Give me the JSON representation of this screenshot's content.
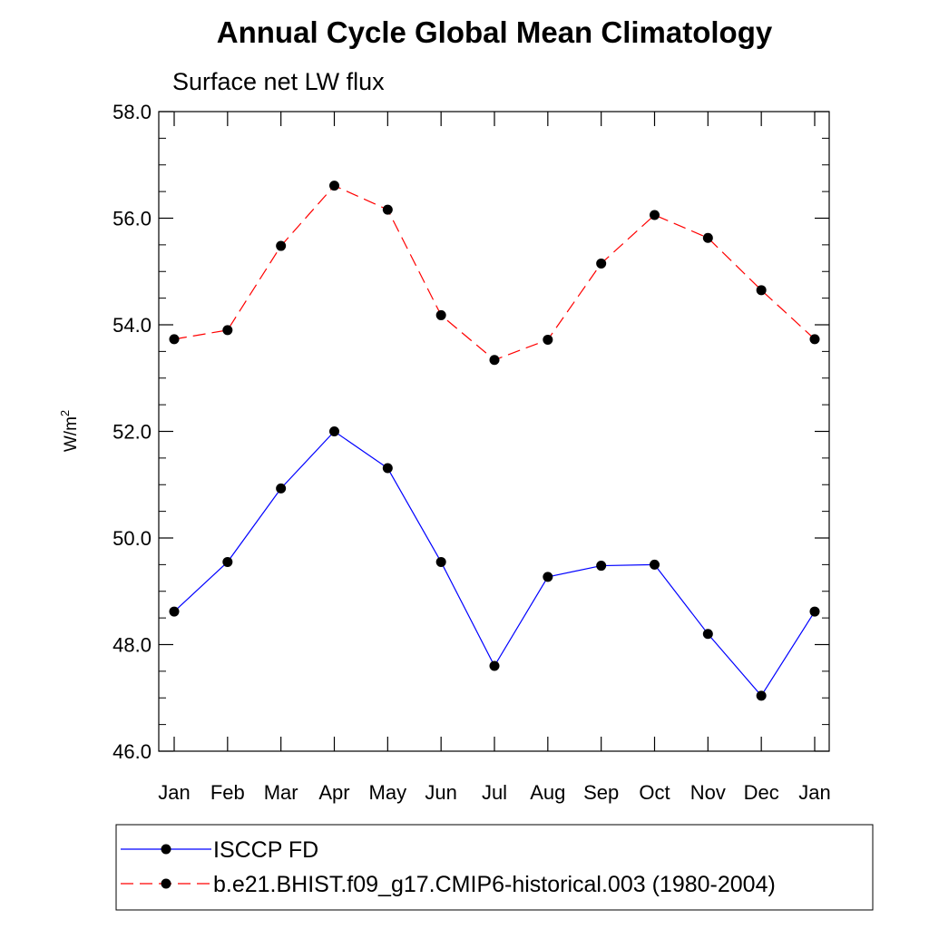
{
  "chart_data": {
    "type": "line",
    "title": "Annual Cycle Global Mean Climatology",
    "subtitle": "Surface net LW flux",
    "ylabel": "W/m",
    "ylabel_sup": "2",
    "xlabel": "",
    "categories": [
      "Jan",
      "Feb",
      "Mar",
      "Apr",
      "May",
      "Jun",
      "Jul",
      "Aug",
      "Sep",
      "Oct",
      "Nov",
      "Dec",
      "Jan"
    ],
    "ylim": [
      46.0,
      58.0
    ],
    "yticks": [
      "46.0",
      "48.0",
      "50.0",
      "52.0",
      "54.0",
      "56.0",
      "58.0"
    ],
    "grid": false,
    "legend_position": "bottom",
    "series": [
      {
        "name": "ISCCP FD",
        "color": "#0000ff",
        "dash": "solid",
        "values": [
          48.62,
          49.55,
          50.93,
          52.0,
          51.31,
          49.55,
          47.6,
          49.27,
          49.48,
          49.5,
          48.2,
          47.04,
          48.62
        ]
      },
      {
        "name": "b.e21.BHIST.f09_g17.CMIP6-historical.003 (1980-2004)",
        "color": "#ff0000",
        "dash": "dashed",
        "values": [
          53.73,
          53.9,
          55.48,
          56.61,
          56.16,
          54.18,
          53.34,
          53.72,
          55.15,
          56.06,
          55.63,
          54.65,
          53.73
        ]
      }
    ]
  }
}
